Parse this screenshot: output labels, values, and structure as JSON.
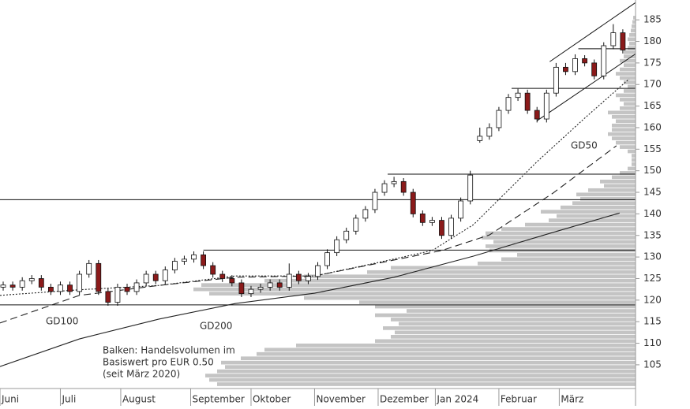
{
  "chart_data": {
    "type": "candlestick",
    "xlim": [
      0,
      200
    ],
    "ylim": [
      99.5,
      189.6
    ],
    "yticks": [
      105,
      110,
      115,
      120,
      125,
      130,
      135,
      140,
      145,
      150,
      155,
      160,
      165,
      170,
      175,
      180,
      185
    ],
    "xticks": [
      {
        "value": 0,
        "label": "Juni"
      },
      {
        "value": 19,
        "label": "Juli"
      },
      {
        "value": 38,
        "label": "August"
      },
      {
        "value": 60,
        "label": "September"
      },
      {
        "value": 79,
        "label": "Oktober"
      },
      {
        "value": 99,
        "label": "November"
      },
      {
        "value": 119,
        "label": "Dezember"
      },
      {
        "value": 137,
        "label": "Jan 2024"
      },
      {
        "value": 157,
        "label": "Februar"
      },
      {
        "value": 176,
        "label": "März"
      }
    ],
    "candles": {
      "up_color": "#ffffff",
      "down_color": "#8b1a1a",
      "x": [
        1,
        4,
        7,
        10,
        13,
        16,
        19,
        22,
        25,
        28,
        31,
        34,
        37,
        40,
        43,
        46,
        49,
        52,
        55,
        58,
        61,
        64,
        67,
        70,
        73,
        76,
        79,
        82,
        85,
        88,
        91,
        94,
        97,
        100,
        103,
        106,
        109,
        112,
        115,
        118,
        121,
        124,
        127,
        130,
        133,
        136,
        139,
        142,
        145,
        148,
        151,
        154,
        157,
        160,
        163,
        166,
        169,
        172,
        175,
        178,
        181,
        184,
        187,
        190,
        193,
        196
      ],
      "open": [
        123,
        123.5,
        123,
        124.5,
        125,
        123,
        122,
        123.5,
        122,
        126,
        128.5,
        122,
        119.5,
        123,
        122,
        124,
        126,
        124.5,
        127,
        129,
        129.5,
        130.5,
        128,
        126,
        125,
        124,
        121.5,
        122.5,
        123,
        124,
        123,
        126,
        124.5,
        125.5,
        128,
        131,
        134,
        136,
        139,
        141,
        145,
        147,
        147.5,
        145,
        140,
        138,
        138.5,
        135,
        139,
        143,
        157,
        158,
        160,
        164,
        167,
        168,
        164,
        162,
        168,
        174,
        173,
        176,
        175,
        172,
        179,
        182
      ],
      "high": [
        124.3,
        124.3,
        125.3,
        125.8,
        125.8,
        123.8,
        124.3,
        124.3,
        126.8,
        129.3,
        129.3,
        122.8,
        123.8,
        123.8,
        124.8,
        126.8,
        126.8,
        127.8,
        129.8,
        130.3,
        131.3,
        131.3,
        128.8,
        126.8,
        125.8,
        124.8,
        123.3,
        123.8,
        124.8,
        124.8,
        128.5,
        126.8,
        126.3,
        128.8,
        131.8,
        134.8,
        136.8,
        139.8,
        141.8,
        145.8,
        147.8,
        148.6,
        148.3,
        145.8,
        140.8,
        139.3,
        139.3,
        139.8,
        143.8,
        150,
        160,
        161,
        164.8,
        167.8,
        169,
        168.8,
        164.8,
        168.8,
        175,
        175,
        177,
        176.8,
        175.8,
        179.8,
        184,
        182.8
      ],
      "low": [
        122.2,
        122.2,
        122.2,
        123.7,
        122.2,
        121.2,
        121.2,
        121.2,
        121.2,
        125.2,
        121.2,
        118.7,
        118.7,
        121.2,
        121.2,
        123.2,
        123.7,
        123.7,
        126.2,
        128.2,
        128.7,
        127.2,
        125.2,
        124.2,
        123.2,
        120.7,
        120.7,
        121.7,
        122.2,
        122.2,
        122.2,
        123.7,
        123.7,
        124.7,
        127.2,
        130.2,
        133.2,
        135.2,
        138.2,
        140.2,
        144.2,
        146.2,
        144.2,
        139.2,
        137.2,
        137.2,
        134.2,
        134.2,
        138.2,
        142.2,
        156.5,
        157.2,
        159.2,
        163.2,
        166.2,
        163.2,
        161.2,
        161.2,
        167.2,
        172.2,
        172.2,
        174.2,
        171.2,
        171.2,
        178.2,
        177.2
      ],
      "close": [
        123.5,
        123,
        124.5,
        125,
        123,
        122,
        123.5,
        122,
        126,
        128.5,
        122,
        119.5,
        123,
        122,
        124,
        126,
        124.5,
        127,
        129,
        129.5,
        130.5,
        128,
        126,
        125,
        124,
        121.5,
        122.5,
        123,
        124,
        123,
        126,
        124.5,
        125.5,
        128,
        131,
        134,
        136,
        139,
        141,
        145,
        147,
        147.5,
        145,
        140,
        138,
        138.5,
        135,
        139,
        143,
        149,
        158,
        160,
        164,
        167,
        168,
        164,
        162,
        168,
        174,
        173,
        176,
        175,
        172,
        179,
        182,
        178
      ]
    },
    "moving_averages": [
      {
        "name": "GD50",
        "style": "dotted",
        "color": "#222222",
        "x": [
          0,
          25,
          50,
          74,
          99,
          117,
          136,
          149,
          169,
          184,
          198
        ],
        "values": [
          121.1,
          122.4,
          123.4,
          125.6,
          125.6,
          128.4,
          131.5,
          137.5,
          152.1,
          162.2,
          171.3
        ]
      },
      {
        "name": "GD100",
        "style": "dashed",
        "color": "#222222",
        "x": [
          0,
          25,
          50,
          74,
          99,
          124,
          139,
          154,
          174,
          194
        ],
        "values": [
          114.7,
          121.1,
          123.4,
          125.3,
          125.6,
          129.3,
          131.5,
          135.1,
          144.8,
          155.8
        ]
      },
      {
        "name": "GD200",
        "style": "solid",
        "color": "#222222",
        "x": [
          0,
          25,
          50,
          74,
          99,
          124,
          149,
          174,
          195
        ],
        "values": [
          104.6,
          111,
          115.6,
          119.2,
          121.6,
          125.3,
          130.2,
          135.7,
          140.2
        ]
      }
    ],
    "levels": [
      {
        "value": 143.3,
        "start": 0
      },
      {
        "value": 118.9,
        "start": 0
      },
      {
        "value": 131.6,
        "start": 64
      },
      {
        "value": 149.2,
        "start": 122
      },
      {
        "value": 169.1,
        "start": 161
      },
      {
        "value": 178.3,
        "start": 182
      }
    ],
    "trendlines": [
      {
        "x": [
          169,
          200
        ],
        "values": [
          161.6,
          177.1
        ]
      },
      {
        "x": [
          173,
          200
        ],
        "values": [
          175.3,
          189.0
        ]
      }
    ],
    "volume_profile": {
      "color": "#c4c4c4",
      "bins": [
        100,
        101,
        102,
        103,
        104,
        105,
        106,
        107,
        108,
        109,
        110,
        111,
        112,
        113,
        114,
        115,
        116,
        117,
        118,
        119,
        120,
        121,
        122,
        123,
        124,
        125,
        126,
        127,
        128,
        129,
        130,
        131,
        132,
        133,
        134,
        135,
        136,
        137,
        138,
        139,
        140,
        141,
        142,
        143,
        144,
        145,
        146,
        147,
        148,
        149,
        150,
        151,
        152,
        153,
        154,
        155,
        156,
        157,
        158,
        159,
        160,
        161,
        162,
        163,
        164,
        165,
        166,
        167,
        168,
        169,
        170,
        171,
        172,
        173,
        174,
        175,
        176,
        177,
        178,
        179,
        180,
        181,
        182,
        183,
        184,
        185,
        186
      ],
      "values": [
        530,
        540,
        545,
        530,
        520,
        525,
        500,
        480,
        470,
        430,
        330,
        310,
        305,
        320,
        300,
        310,
        330,
        290,
        330,
        350,
        420,
        540,
        560,
        550,
        470,
        420,
        340,
        310,
        200,
        170,
        150,
        185,
        190,
        180,
        195,
        190,
        170,
        140,
        110,
        100,
        120,
        95,
        80,
        70,
        75,
        60,
        40,
        45,
        30,
        20,
        10,
        5,
        5,
        5,
        10,
        20,
        25,
        30,
        35,
        30,
        30,
        25,
        30,
        35,
        20,
        15,
        20,
        25,
        15,
        10,
        15,
        20,
        25,
        20,
        15,
        20,
        15,
        15,
        10,
        8,
        10,
        8,
        6,
        5,
        4,
        3
      ]
    },
    "annotation": [
      "Balken: Handelsvolumen im",
      "Basiswert pro EUR 0.50",
      "(seit März 2020)"
    ]
  }
}
